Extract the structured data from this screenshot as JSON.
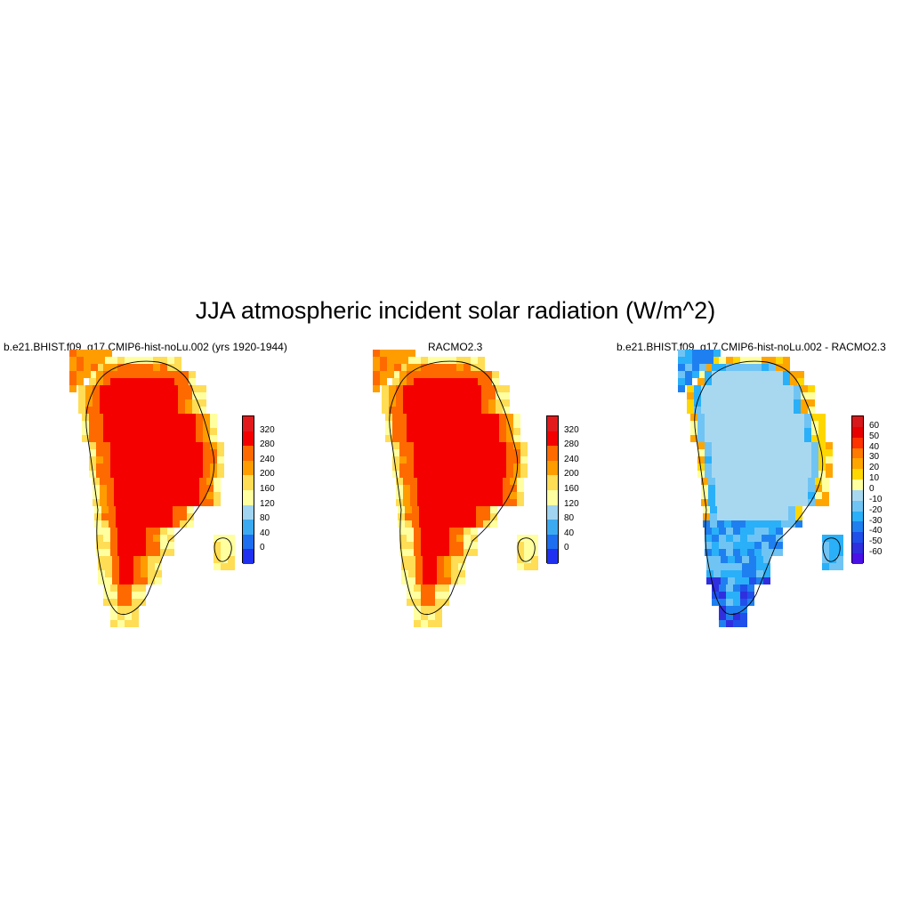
{
  "title": "JJA atmospheric incident solar radiation (W/m^2)",
  "panels": [
    {
      "title": "b.e21.BHIST.f09_g17.CMIP6-hist-noLu.002 (yrs 1920-1944)",
      "colorbar": {
        "labels": [
          "320",
          "280",
          "240",
          "200",
          "160",
          "120",
          "80",
          "40",
          "0"
        ],
        "colors": [
          "#e31a1c",
          "#f40000",
          "#ff6a00",
          "#ff9d00",
          "#ffdd55",
          "#ffffa0",
          "#a0d4f0",
          "#3caaf0",
          "#1e6ef0",
          "#2030f0"
        ]
      },
      "field": "absolute"
    },
    {
      "title": "RACMO2.3",
      "colorbar": {
        "labels": [
          "320",
          "280",
          "240",
          "200",
          "160",
          "120",
          "80",
          "40",
          "0"
        ],
        "colors": [
          "#e31a1c",
          "#f40000",
          "#ff6a00",
          "#ff9d00",
          "#ffdd55",
          "#ffffa0",
          "#a0d4f0",
          "#3caaf0",
          "#1e6ef0",
          "#2030f0"
        ]
      },
      "field": "absolute"
    },
    {
      "title": "b.e21.BHIST.f09_g17.CMIP6-hist-noLu.002 - RACMO2.3",
      "colorbar": {
        "labels": [
          "60",
          "50",
          "40",
          "30",
          "20",
          "10",
          "0",
          "-10",
          "-20",
          "-30",
          "-40",
          "-50",
          "-60"
        ],
        "colors": [
          "#d7191c",
          "#e80000",
          "#ff3300",
          "#ff7a00",
          "#ffa500",
          "#ffd700",
          "#ffffa0",
          "#a8d8f0",
          "#70c4f4",
          "#2ab0f8",
          "#1e80f0",
          "#2050ea",
          "#2f2fe0",
          "#4a10e8"
        ]
      },
      "field": "difference"
    }
  ]
}
